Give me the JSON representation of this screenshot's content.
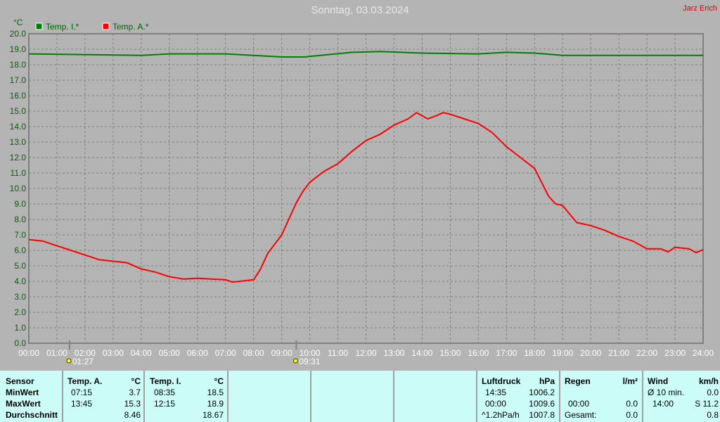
{
  "title": "Sonntag, 03.03.2024",
  "author": "Jarz Erich",
  "chart_data": {
    "type": "line",
    "ylabel": "°C",
    "ylim": [
      0,
      20
    ],
    "yticks": [
      "0.0",
      "1.0",
      "2.0",
      "3.0",
      "4.0",
      "5.0",
      "6.0",
      "7.0",
      "8.0",
      "9.0",
      "10.0",
      "11.0",
      "12.0",
      "13.0",
      "14.0",
      "15.0",
      "16.0",
      "17.0",
      "18.0",
      "19.0",
      "20.0"
    ],
    "xlim": [
      0,
      24
    ],
    "xticks": [
      "00:00",
      "01:00",
      "02:00",
      "03:00",
      "04:00",
      "05:00",
      "06:00",
      "07:00",
      "08:00",
      "09:00",
      "10:00",
      "11:00",
      "12:00",
      "13:00",
      "14:00",
      "15:00",
      "16:00",
      "17:00",
      "18:00",
      "19:00",
      "20:00",
      "21:00",
      "22:00",
      "23:00",
      "24:00"
    ],
    "grid": true,
    "legend_position": "top-left",
    "series": [
      {
        "name": "Temp. I.*",
        "color": "#008000",
        "x": [
          0,
          4,
          5,
          7,
          8,
          9,
          9.8,
          11.5,
          12.5,
          14,
          16,
          17,
          18,
          19,
          24
        ],
        "y": [
          18.7,
          18.6,
          18.7,
          18.7,
          18.6,
          18.5,
          18.5,
          18.8,
          18.85,
          18.75,
          18.7,
          18.8,
          18.75,
          18.6,
          18.6
        ]
      },
      {
        "name": "Temp. A.*",
        "color": "#ff0000",
        "x": [
          0,
          0.5,
          1,
          1.5,
          2,
          2.5,
          3,
          3.5,
          4,
          4.5,
          5,
          5.5,
          6,
          6.5,
          7,
          7.25,
          7.5,
          8,
          8.25,
          8.5,
          8.75,
          9,
          9.25,
          9.5,
          9.75,
          10,
          10.5,
          11,
          11.5,
          12,
          12.5,
          13,
          13.5,
          13.8,
          14,
          14.2,
          14.5,
          14.75,
          15,
          15.5,
          16,
          16.5,
          17,
          17.5,
          18,
          18.25,
          18.5,
          18.75,
          19,
          19.5,
          20,
          20.5,
          21,
          21.5,
          22,
          22.5,
          22.75,
          23,
          23.5,
          23.75,
          24
        ],
        "y": [
          6.7,
          6.6,
          6.3,
          6.0,
          5.7,
          5.4,
          5.3,
          5.2,
          4.8,
          4.6,
          4.3,
          4.15,
          4.2,
          4.15,
          4.1,
          3.95,
          4.0,
          4.1,
          4.8,
          5.8,
          6.4,
          7.0,
          8.0,
          9.0,
          9.8,
          10.4,
          11.1,
          11.6,
          12.4,
          13.1,
          13.5,
          14.1,
          14.5,
          14.9,
          14.7,
          14.5,
          14.7,
          14.9,
          14.8,
          14.5,
          14.2,
          13.6,
          12.7,
          12.0,
          11.3,
          10.4,
          9.5,
          9.0,
          8.9,
          7.8,
          7.6,
          7.3,
          6.9,
          6.6,
          6.1,
          6.1,
          5.9,
          6.2,
          6.1,
          5.85,
          6.05
        ]
      }
    ],
    "annotations": [
      {
        "label": "01:27",
        "x": 1.45,
        "icon": "sunrise-icon"
      },
      {
        "label": "09:31",
        "x": 9.52,
        "icon": "sunset-icon"
      }
    ]
  },
  "table": {
    "c1": [
      "Sensor",
      "MinWert",
      "MaxWert",
      "Durchschnitt"
    ],
    "tempA": {
      "head": "Temp. A.",
      "unit": "°C",
      "min_t": "07:15",
      "min": "3.7",
      "max_t": "13:45",
      "max": "15.3",
      "avg": "8.46"
    },
    "tempI": {
      "head": "Temp. I.",
      "unit": "°C",
      "min_t": "08:35",
      "min": "18.5",
      "max_t": "12:15",
      "max": "18.9",
      "avg": "18.67"
    },
    "druck": {
      "head": "Luftdruck",
      "unit": "hPa",
      "r1a": "14:35",
      "r1b": "1006.2",
      "r2a": "00:00",
      "r2b": "1009.6",
      "r3a": "^1.2hPa/h",
      "r3b": "1007.8"
    },
    "regen": {
      "head": "Regen",
      "unit": "l/m²",
      "r2a": "00:00",
      "r2b": "0.0",
      "r3a": "Gesamt:",
      "r3b": "0.0"
    },
    "wind": {
      "head": "Wind",
      "unit": "km/h",
      "r1a": "Ø 10 min.",
      "r1b": "0.0",
      "r2a": "14:00",
      "r2b": "S 11.2",
      "r3b": "0.8"
    }
  }
}
